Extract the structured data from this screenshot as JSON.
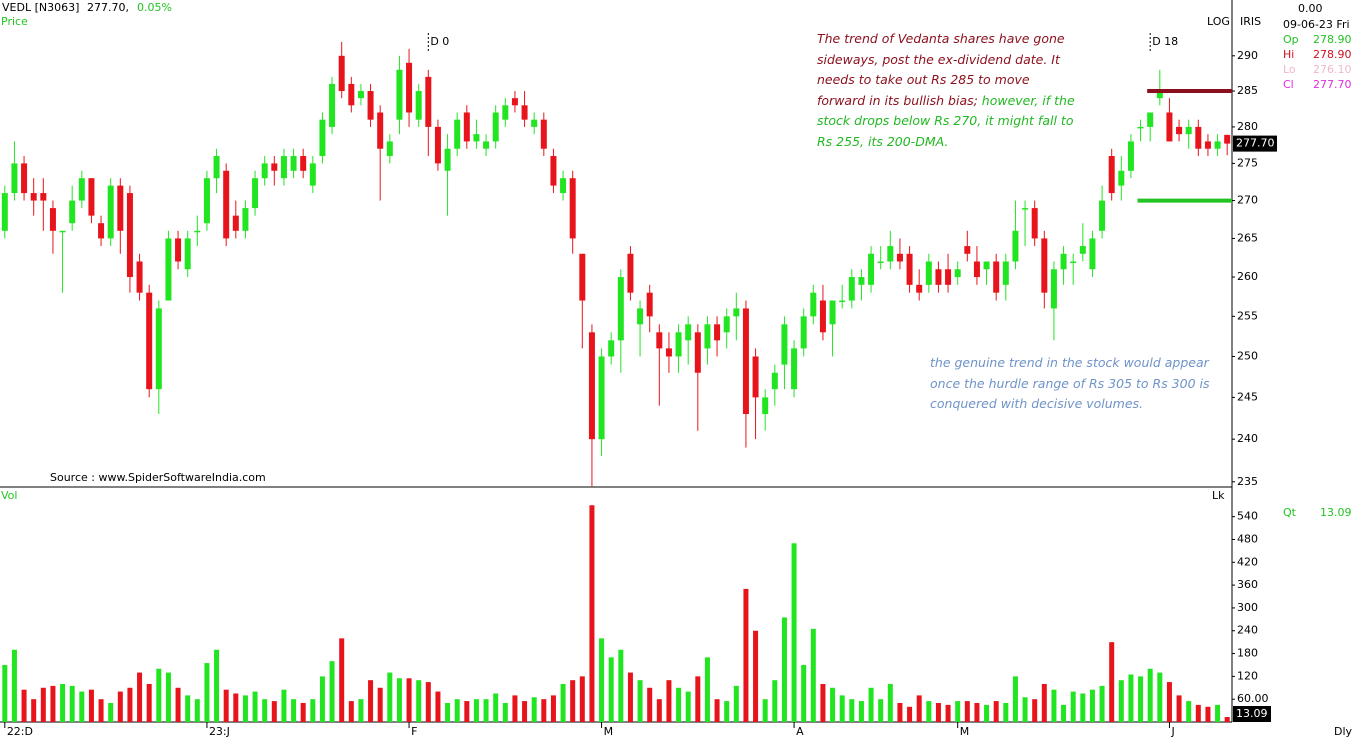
{
  "header": {
    "symbol": "VEDL [N3063]",
    "last": "277.70,",
    "change": "0.05%",
    "price_label": "Price",
    "vol_label": "Vol",
    "log": "LOG",
    "iris": "IRIS",
    "lk": "Lk",
    "period": "Dly",
    "source": "Source : www.SpiderSoftwareIndia.com"
  },
  "info": {
    "top": "0.00",
    "date": "09-06-23 Fri",
    "rows": [
      {
        "label": "Op",
        "value": "278.90",
        "color": "#22c322"
      },
      {
        "label": "Hi",
        "value": "278.90",
        "color": "#d01020"
      },
      {
        "label": "Lo",
        "value": "276.10",
        "color": "#f0b8cc"
      },
      {
        "label": "Cl",
        "value": "277.70",
        "color": "#e030e0"
      }
    ],
    "qt_label": "Qt",
    "qt_value": "13.09"
  },
  "notes": {
    "first_red": "The trend of Vedanta shares have gone sideways, post the ex-dividend date. It needs to take out Rs 285 to move forward in its bullish bias;",
    "first_green": " however, if the stock drops below Rs 270, it might fall to Rs 255, its 200-DMA.",
    "second": "the genuine trend in the stock would appear once the hurdle range of Rs 305 to Rs 300 is conquered with decisive volumes."
  },
  "chart_data": {
    "type": "candlestick",
    "log_scale": true,
    "up_color": "#22e522",
    "down_color": "#e8141c",
    "categories": [
      "22:D",
      null,
      null,
      null,
      null,
      null,
      null,
      null,
      null,
      null,
      null,
      null,
      null,
      null,
      null,
      null,
      null,
      null,
      null,
      null,
      null,
      "23:J",
      null,
      null,
      null,
      null,
      null,
      null,
      null,
      null,
      null,
      null,
      null,
      null,
      null,
      null,
      null,
      null,
      null,
      null,
      null,
      null,
      "F",
      null,
      null,
      null,
      null,
      null,
      null,
      null,
      null,
      null,
      null,
      null,
      null,
      null,
      null,
      null,
      null,
      null,
      null,
      null,
      "M",
      null,
      null,
      null,
      null,
      null,
      null,
      null,
      null,
      null,
      null,
      null,
      null,
      null,
      null,
      null,
      null,
      null,
      null,
      null,
      "A",
      null,
      null,
      null,
      null,
      null,
      null,
      null,
      null,
      null,
      null,
      null,
      null,
      null,
      null,
      null,
      null,
      "M",
      null,
      null,
      null,
      null,
      null,
      null,
      null,
      null,
      null,
      null,
      null,
      null,
      null,
      null,
      null,
      null,
      null,
      null,
      null,
      null,
      null,
      "J",
      null,
      null,
      null,
      null,
      null,
      null
    ],
    "open": [
      266,
      271,
      275,
      271,
      271,
      269,
      266,
      267,
      270,
      273,
      267,
      265,
      272,
      271,
      262,
      258,
      246,
      257,
      265,
      261,
      266,
      267,
      273,
      274,
      268,
      266,
      269,
      273,
      275,
      273,
      274,
      276,
      272,
      276,
      280,
      290,
      286,
      284,
      285,
      282,
      276,
      281,
      289,
      281,
      287,
      280,
      274,
      277,
      282,
      278,
      277,
      278,
      281,
      284,
      283,
      280,
      281,
      276,
      271,
      273,
      263,
      253,
      240,
      250,
      252,
      263,
      254,
      258,
      253,
      251,
      250,
      252,
      253,
      251,
      254,
      253,
      255,
      256,
      250,
      243,
      246,
      249,
      246,
      251,
      255,
      257,
      254,
      257,
      257,
      259,
      259,
      262,
      262,
      263,
      263,
      259,
      259,
      261,
      261,
      260,
      264,
      262,
      261,
      262,
      259,
      262,
      269,
      269,
      265,
      256,
      261,
      262,
      263,
      261,
      266,
      276,
      272,
      274,
      280,
      280,
      284,
      282,
      280,
      279,
      280,
      278,
      277,
      278.9
    ],
    "high": [
      272,
      278,
      276,
      273,
      273,
      270,
      266,
      272,
      274,
      273,
      268,
      273,
      273,
      272,
      263,
      259,
      257,
      266,
      266,
      266,
      268,
      274,
      277,
      275,
      270,
      270,
      274,
      276,
      276,
      277,
      277,
      277,
      276,
      282,
      287,
      292,
      287,
      286,
      286,
      283,
      279,
      290,
      291,
      286,
      288,
      281,
      279,
      282,
      283,
      281,
      279,
      283,
      284,
      285,
      285,
      282,
      282,
      277,
      274,
      274,
      263,
      254,
      251,
      253,
      261,
      264,
      257,
      259,
      254,
      253,
      254,
      255,
      254,
      255,
      255,
      256,
      258,
      257,
      251,
      246,
      249,
      255,
      252,
      256,
      259,
      259,
      257,
      259,
      261,
      261,
      264,
      264,
      266,
      265,
      264,
      261,
      263,
      262,
      263,
      262,
      266,
      264,
      262,
      263,
      263,
      270,
      270,
      270,
      266,
      262,
      264,
      263,
      267,
      266,
      272,
      277,
      276,
      279,
      281,
      282,
      288,
      284,
      281,
      281,
      281,
      279,
      279,
      278.9
    ],
    "low": [
      265,
      270,
      270,
      268,
      266,
      263,
      258,
      266,
      269,
      267,
      264,
      264,
      263,
      258,
      257,
      245,
      243,
      257,
      261,
      260,
      264,
      266,
      271,
      264,
      265,
      265,
      268,
      272,
      272,
      272,
      273,
      273,
      271,
      275,
      279,
      284,
      282,
      283,
      280,
      270,
      275,
      279,
      280,
      280,
      276,
      274,
      268,
      276,
      277,
      277,
      276,
      277,
      280,
      282,
      280,
      279,
      276,
      271,
      270,
      263,
      251,
      234.5,
      238,
      249,
      248,
      257,
      250,
      253,
      244,
      248,
      248,
      249,
      241,
      249,
      250,
      251,
      252,
      239,
      240,
      241,
      244,
      246,
      245,
      250,
      254,
      252,
      250,
      256,
      256,
      257,
      258,
      261,
      261,
      261,
      258,
      257,
      258,
      258,
      258,
      259,
      262,
      259,
      259,
      257,
      257,
      261,
      264,
      264,
      256,
      252,
      259,
      259,
      262,
      260,
      265,
      270,
      270,
      273,
      278,
      278,
      283,
      278,
      278,
      277,
      276,
      276,
      276,
      276.1
    ],
    "close": [
      271,
      275,
      271,
      270,
      270,
      266,
      266,
      270,
      273,
      268,
      265,
      272,
      266,
      260,
      258,
      246,
      256,
      265,
      262,
      265,
      266,
      273,
      276,
      265,
      266,
      269,
      273,
      275,
      274,
      276,
      276,
      274,
      275,
      281,
      286,
      285,
      283,
      285,
      281,
      277,
      278,
      288,
      282,
      285,
      280,
      275,
      277,
      281,
      278,
      279,
      278,
      282,
      283,
      283,
      281,
      281,
      277,
      272,
      273,
      265,
      257,
      240,
      250,
      252,
      260,
      258,
      256,
      255,
      251,
      250,
      253,
      254,
      248,
      254,
      252,
      255,
      256,
      243,
      245,
      245,
      248,
      254,
      251,
      255,
      258,
      253,
      257,
      257,
      260,
      260,
      263,
      262,
      264,
      262,
      259,
      258,
      262,
      259,
      259,
      261,
      263,
      260,
      262,
      258,
      262,
      266,
      269,
      265,
      258,
      261,
      263,
      262,
      264,
      265,
      270,
      271,
      274,
      278,
      280,
      282,
      285,
      278,
      279,
      280,
      277,
      277,
      278,
      277.7
    ],
    "volume": [
      150,
      190,
      85,
      60,
      90,
      95,
      100,
      95,
      80,
      85,
      60,
      50,
      80,
      90,
      130,
      100,
      140,
      130,
      90,
      70,
      60,
      155,
      190,
      85,
      75,
      70,
      80,
      60,
      55,
      85,
      60,
      50,
      60,
      120,
      160,
      220,
      55,
      60,
      110,
      90,
      130,
      115,
      115,
      110,
      105,
      80,
      50,
      60,
      55,
      60,
      60,
      75,
      50,
      70,
      55,
      65,
      60,
      70,
      100,
      110,
      120,
      570,
      220,
      170,
      190,
      130,
      110,
      90,
      60,
      110,
      90,
      80,
      120,
      170,
      60,
      55,
      95,
      350,
      240,
      60,
      110,
      275,
      470,
      150,
      245,
      100,
      90,
      70,
      60,
      55,
      90,
      60,
      100,
      50,
      40,
      70,
      55,
      50,
      45,
      55,
      55,
      50,
      45,
      55,
      50,
      120,
      65,
      60,
      100,
      85,
      45,
      80,
      75,
      85,
      95,
      210,
      110,
      125,
      120,
      140,
      130,
      105,
      70,
      55,
      45,
      40,
      45,
      13.09
    ],
    "ylim": [
      234.4,
      298.1
    ],
    "yticks": [
      235,
      240,
      245,
      250,
      255,
      260,
      265,
      270,
      275,
      280,
      285,
      290
    ],
    "vlim": [
      0,
      618
    ],
    "vticks": [
      {
        "value": 60,
        "label": "60.00"
      },
      120,
      180,
      240,
      300,
      360,
      420,
      480,
      540
    ],
    "price_tag": "277.70",
    "volume_tag": "13.09",
    "levels": [
      {
        "value": 285,
        "color": "#8b0f1c",
        "from": 119
      },
      {
        "value": 270,
        "color": "#22c322",
        "from": 118
      }
    ],
    "markers": [
      {
        "index": 44,
        "label": "D 0"
      },
      {
        "index": 119,
        "label": "D 18"
      }
    ]
  }
}
